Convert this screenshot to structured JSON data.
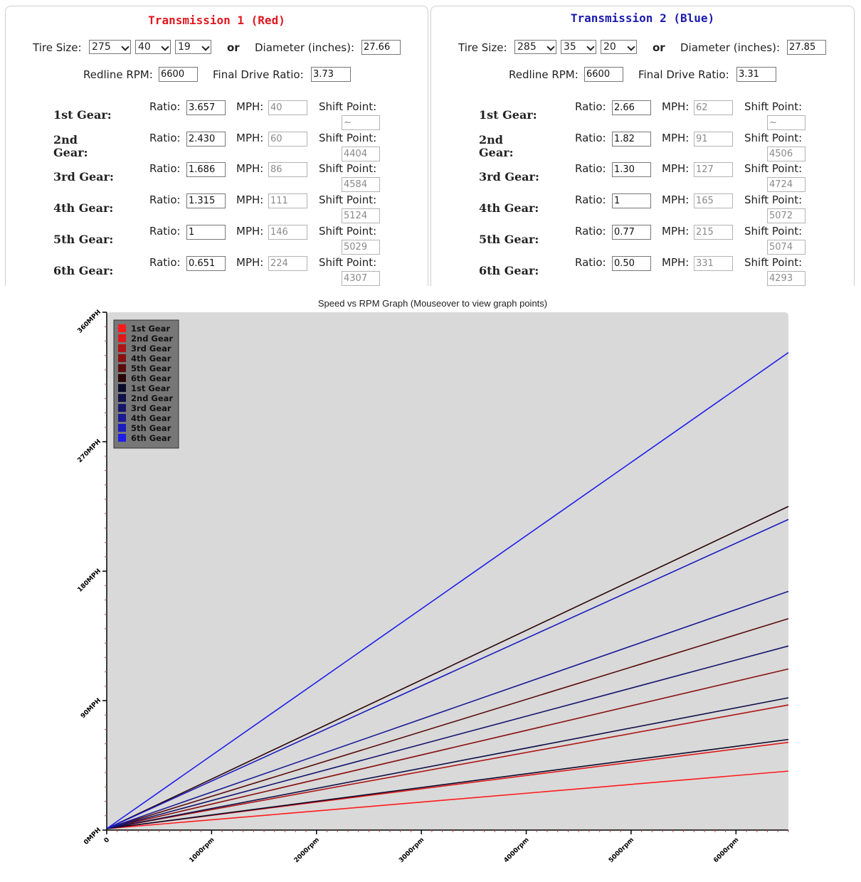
{
  "transmissions": [
    {
      "title": "Transmission 1 (Red)",
      "title_color": "#e0181f",
      "tire_size_label": "Tire Size:",
      "tire_width": "275",
      "tire_aspect": "40",
      "tire_rim": "19",
      "or_label": "or",
      "diameter_label": "Diameter (inches):",
      "diameter": "27.66",
      "redline_label": "Redline RPM:",
      "redline": "6600",
      "final_drive_label": "Final Drive Ratio:",
      "final_drive": "3.73",
      "gears": [
        {
          "name": "1st Gear:",
          "ratio": "3.657",
          "mph": "40",
          "shift": "~"
        },
        {
          "name": "2nd Gear:",
          "ratio": "2.430",
          "mph": "60",
          "shift": "4404"
        },
        {
          "name": "3rd Gear:",
          "ratio": "1.686",
          "mph": "86",
          "shift": "4584"
        },
        {
          "name": "4th Gear:",
          "ratio": "1.315",
          "mph": "111",
          "shift": "5124"
        },
        {
          "name": "5th Gear:",
          "ratio": "1",
          "mph": "146",
          "shift": "5029"
        },
        {
          "name": "6th Gear:",
          "ratio": "0.651",
          "mph": "224",
          "shift": "4307"
        }
      ]
    },
    {
      "title": "Transmission 2 (Blue)",
      "title_color": "#1a1ab0",
      "tire_size_label": "Tire Size:",
      "tire_width": "285",
      "tire_aspect": "35",
      "tire_rim": "20",
      "or_label": "or",
      "diameter_label": "Diameter (inches):",
      "diameter": "27.85",
      "redline_label": "Redline RPM:",
      "redline": "6600",
      "final_drive_label": "Final Drive Ratio:",
      "final_drive": "3.31",
      "gears": [
        {
          "name": "1st Gear:",
          "ratio": "2.66",
          "mph": "62",
          "shift": "~"
        },
        {
          "name": "2nd Gear:",
          "ratio": "1.82",
          "mph": "91",
          "shift": "4506"
        },
        {
          "name": "3rd Gear:",
          "ratio": "1.30",
          "mph": "127",
          "shift": "4724"
        },
        {
          "name": "4th Gear:",
          "ratio": "1",
          "mph": "165",
          "shift": "5072"
        },
        {
          "name": "5th Gear:",
          "ratio": "0.77",
          "mph": "215",
          "shift": "5074"
        },
        {
          "name": "6th Gear:",
          "ratio": "0.50",
          "mph": "331",
          "shift": "4293"
        }
      ]
    }
  ],
  "field_labels": {
    "ratio": "Ratio:",
    "mph": "MPH:",
    "shift": "Shift Point:"
  },
  "chart_data": {
    "type": "line",
    "title": "Speed vs RPM Graph (Mouseover to view graph points)",
    "xlim": [
      0,
      6500
    ],
    "ylim": [
      0,
      360
    ],
    "x_ticks": [
      0,
      1000,
      2000,
      3000,
      4000,
      5000,
      6000
    ],
    "x_tick_labels": [
      "0",
      "1000rpm",
      "2000rpm",
      "3000rpm",
      "4000rpm",
      "5000rpm",
      "6000rpm"
    ],
    "y_ticks": [
      0,
      90,
      180,
      270,
      360
    ],
    "y_tick_labels": [
      "0MPH",
      "90MPH",
      "180MPH",
      "270MPH",
      "360MPH"
    ],
    "legend_position": "top-left",
    "background": "#d9d9d9",
    "series": [
      {
        "name": "1st Gear",
        "color": "#ff1a1a",
        "x": [
          0,
          6500
        ],
        "y": [
          0,
          40
        ]
      },
      {
        "name": "2nd Gear",
        "color": "#e01818",
        "x": [
          0,
          6500
        ],
        "y": [
          0,
          60
        ]
      },
      {
        "name": "3rd Gear",
        "color": "#b01414",
        "x": [
          0,
          6500
        ],
        "y": [
          0,
          86
        ]
      },
      {
        "name": "4th Gear",
        "color": "#8a1010",
        "x": [
          0,
          6500
        ],
        "y": [
          0,
          111
        ]
      },
      {
        "name": "5th Gear",
        "color": "#5a0c0c",
        "x": [
          0,
          6500
        ],
        "y": [
          0,
          146
        ]
      },
      {
        "name": "6th Gear",
        "color": "#2a0505",
        "x": [
          0,
          6500
        ],
        "y": [
          0,
          224
        ]
      },
      {
        "name": "1st Gear",
        "color": "#0a0a2a",
        "x": [
          0,
          6500
        ],
        "y": [
          0,
          62
        ]
      },
      {
        "name": "2nd Gear",
        "color": "#10104a",
        "x": [
          0,
          6500
        ],
        "y": [
          0,
          91
        ]
      },
      {
        "name": "3rd Gear",
        "color": "#15156e",
        "x": [
          0,
          6500
        ],
        "y": [
          0,
          127
        ]
      },
      {
        "name": "4th Gear",
        "color": "#1a1a96",
        "x": [
          0,
          6500
        ],
        "y": [
          0,
          165
        ]
      },
      {
        "name": "5th Gear",
        "color": "#1c1cc0",
        "x": [
          0,
          6500
        ],
        "y": [
          0,
          215
        ]
      },
      {
        "name": "6th Gear",
        "color": "#1e1ee8",
        "x": [
          0,
          6500
        ],
        "y": [
          0,
          331
        ]
      }
    ]
  }
}
